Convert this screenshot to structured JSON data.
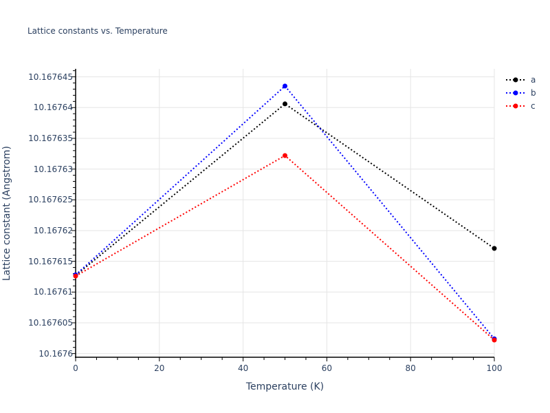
{
  "chart_data": {
    "type": "line",
    "title": "Lattice constants vs. Temperature",
    "xlabel": "Temperature (K)",
    "ylabel": "Lattice constant (Angstrom)",
    "x": [
      0,
      50,
      100
    ],
    "series": [
      {
        "name": "a",
        "color": "#000000",
        "values": [
          10.1676127,
          10.1676406,
          10.1676171
        ]
      },
      {
        "name": "b",
        "color": "#0000ff",
        "values": [
          10.1676128,
          10.1676435,
          10.1676024
        ]
      },
      {
        "name": "c",
        "color": "#ff0000",
        "values": [
          10.1676126,
          10.1676322,
          10.1676022
        ]
      }
    ],
    "xlim": [
      0,
      100
    ],
    "ylim": [
      10.1675994,
      10.1676463
    ],
    "xticks": [
      0,
      20,
      40,
      60,
      80,
      100
    ],
    "xtick_labels": [
      "0",
      "20",
      "40",
      "60",
      "80",
      "100"
    ],
    "yticks": [
      10.1676,
      10.167605,
      10.16761,
      10.167615,
      10.16762,
      10.167625,
      10.16763,
      10.167635,
      10.16764,
      10.167645
    ],
    "ytick_labels": [
      "10.1676",
      "10.167605",
      "10.16761",
      "10.167615",
      "10.16762",
      "10.167625",
      "10.16763",
      "10.167635",
      "10.16764",
      "10.167645"
    ],
    "grid": true,
    "line_style": "dotted",
    "markers": true,
    "legend_position": "top-right"
  }
}
